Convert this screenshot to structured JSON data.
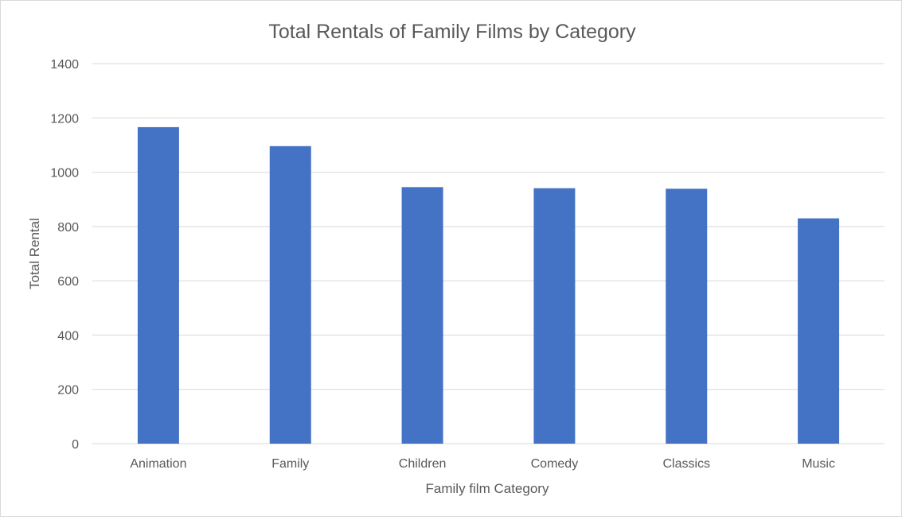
{
  "chart_data": {
    "type": "bar",
    "title": "Total Rentals of Family Films by Category",
    "xlabel": "Family film Category",
    "ylabel": "Total Rental",
    "categories": [
      "Animation",
      "Family",
      "Children",
      "Comedy",
      "Classics",
      "Music"
    ],
    "values": [
      1166,
      1096,
      945,
      941,
      939,
      830
    ],
    "ylim": [
      0,
      1400
    ],
    "yticks": [
      0,
      200,
      400,
      600,
      800,
      1000,
      1200,
      1400
    ],
    "grid": "horizontal",
    "legend": "none",
    "bar_color": "#4472C4",
    "grid_color": "#d9d9d9"
  }
}
